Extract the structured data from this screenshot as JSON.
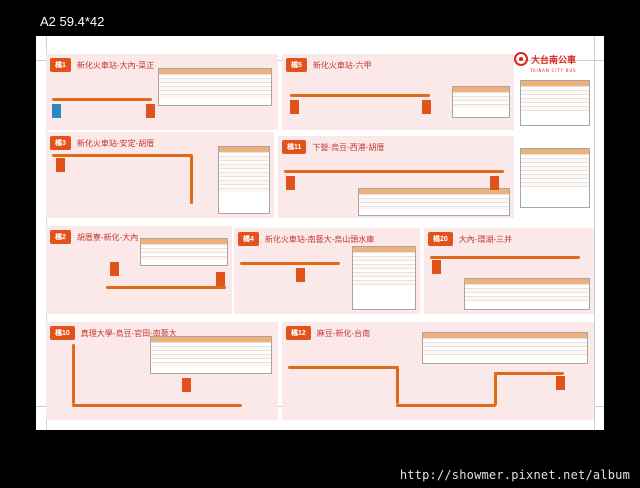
{
  "frame": {
    "size_label": "A2   59.4*42"
  },
  "watermark": "http://showmer.pixnet.net/album",
  "brand": {
    "name": "大台南公車",
    "sub": "TAINAN CITY BUS"
  },
  "panels": [
    {
      "badge": "橘1",
      "title": "新化火車站-大內-菜正"
    },
    {
      "badge": "橘5",
      "title": "新化火車站-六甲"
    },
    {
      "badge": "橘3",
      "title": "新化火車站-安定-胡厝"
    },
    {
      "badge": "橘11",
      "title": "下營-烏豆-西港-胡厝"
    },
    {
      "badge": "橘2",
      "title": "胡厝寮-新化-大內"
    },
    {
      "badge": "橘4",
      "title": "新化火車站-南藝大-烏山頭水庫"
    },
    {
      "badge": "橘20",
      "title": "大內-環湖-三井"
    },
    {
      "badge": "橘10",
      "title": "真理大學-烏豆-官田-南藝大"
    },
    {
      "badge": "橘12",
      "title": "麻豆-新化-台南"
    }
  ],
  "colors": {
    "route": "#e06a18",
    "badge": "#e2531c",
    "title": "#c3362b",
    "panel": "#fbe9ea"
  }
}
